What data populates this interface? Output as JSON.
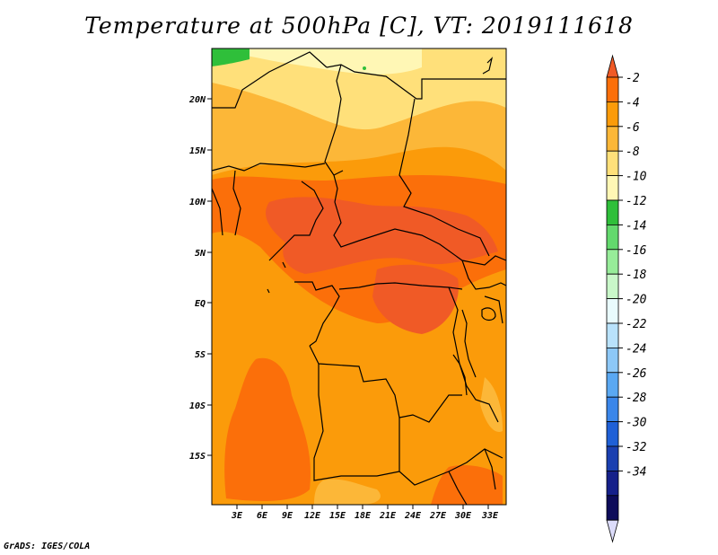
{
  "title": "Temperature at 500hPa [C], VT: 2019111618",
  "footer": "GrADS: IGES/COLA",
  "map": {
    "lat_labels": [
      "20N",
      "15N",
      "10N",
      "5N",
      "EQ",
      "5S",
      "10S",
      "15S"
    ],
    "lon_labels": [
      "3E",
      "6E",
      "9E",
      "12E",
      "15E",
      "18E",
      "21E",
      "24E",
      "27E",
      "30E",
      "33E"
    ]
  },
  "colorbar": {
    "labels": [
      "-2",
      "-4",
      "-6",
      "-8",
      "-10",
      "-12",
      "-14",
      "-16",
      "-18",
      "-20",
      "-22",
      "-24",
      "-26",
      "-28",
      "-30",
      "-32",
      "-34"
    ],
    "colors": [
      "#f05a26",
      "#fb6f0a",
      "#fb9b0a",
      "#fcb738",
      "#ffe07a",
      "#fff7b5",
      "#2fbf3a",
      "#63d96d",
      "#97ec99",
      "#c9f7c9",
      "#e9fbfd",
      "#b9e2fb",
      "#8dc8f7",
      "#5aa8f2",
      "#3a86ea",
      "#1f60d6",
      "#1a3fb0",
      "#15208a",
      "#0d0c5a",
      "#dcdcfa"
    ]
  }
}
